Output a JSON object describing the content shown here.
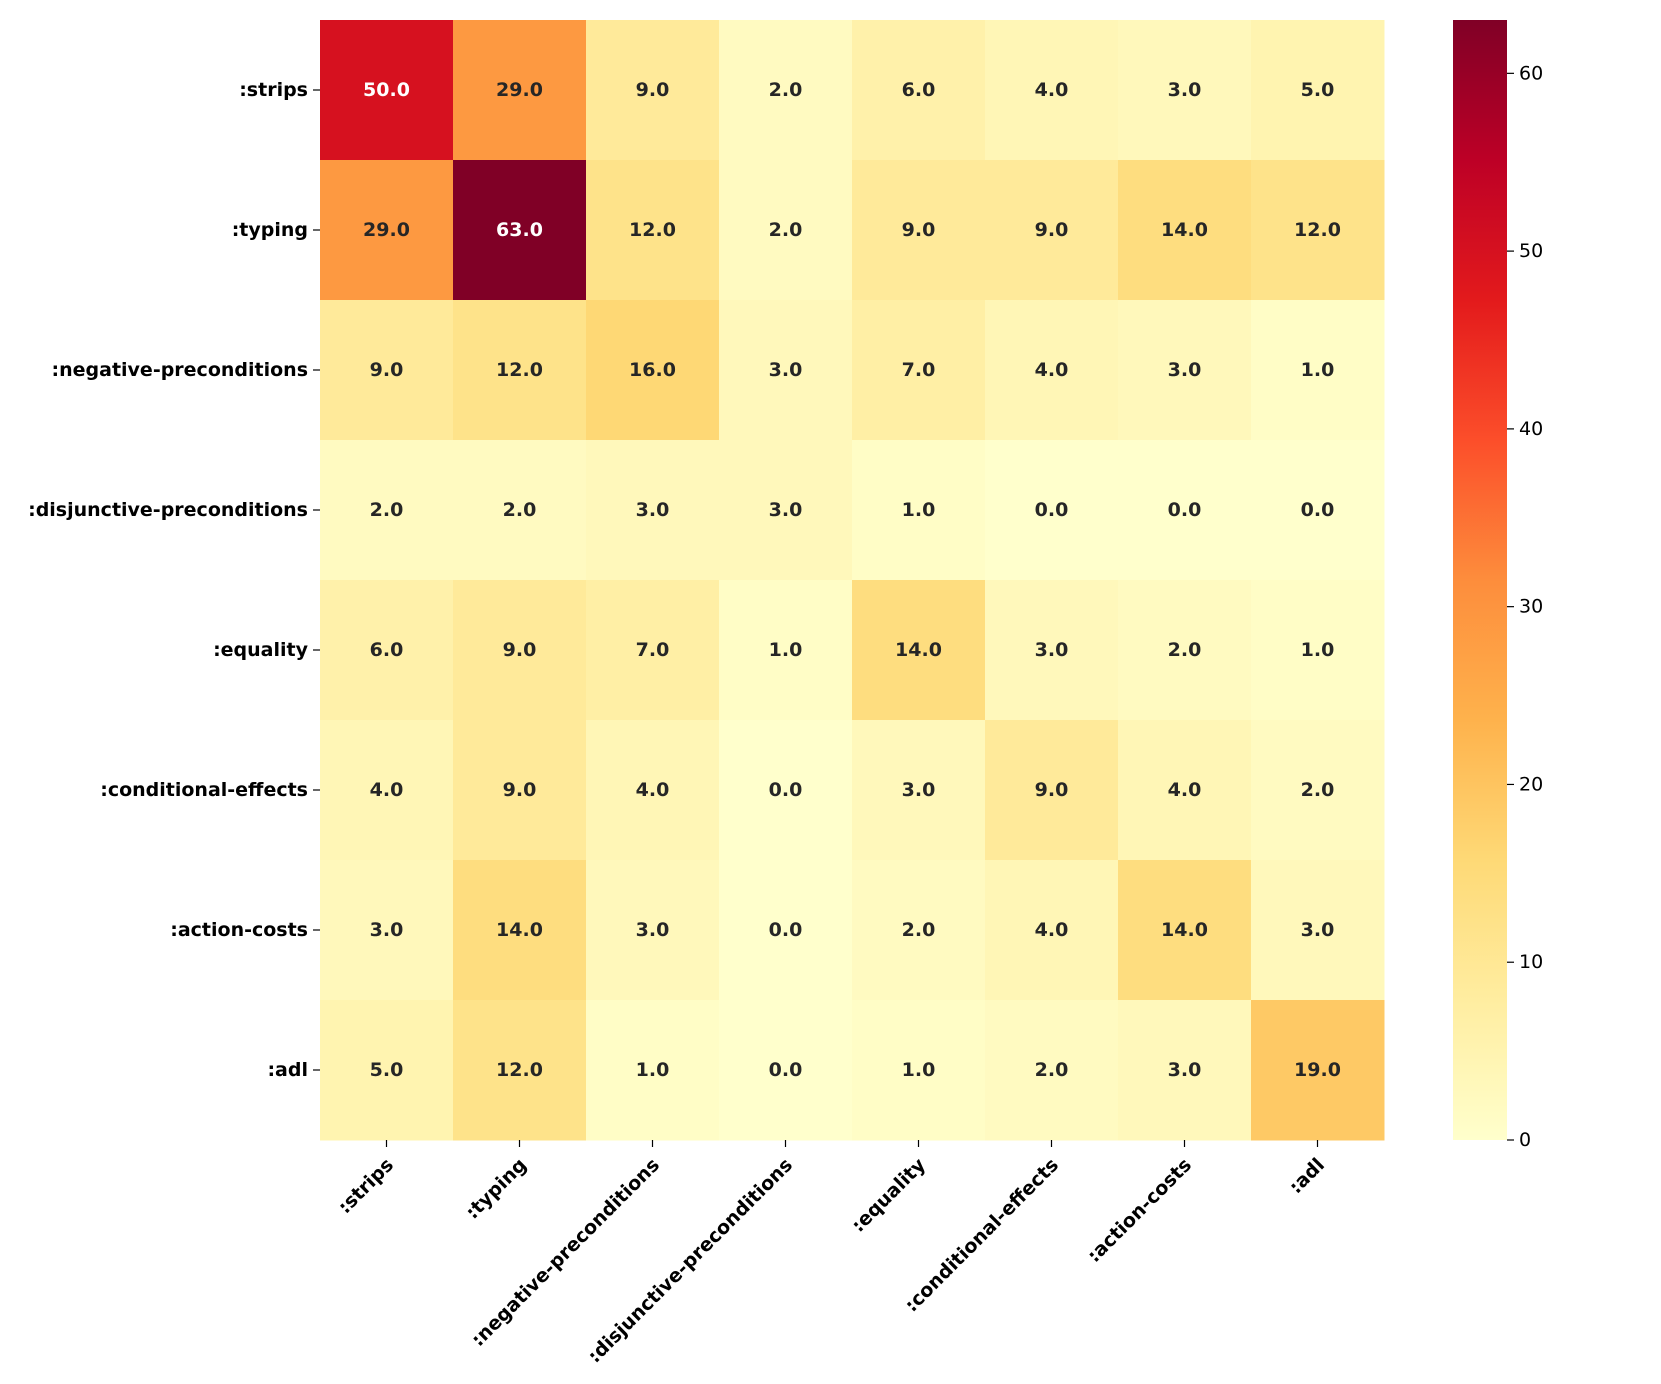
{
  "chart_data": {
    "type": "heatmap",
    "title": "",
    "xlabel": "",
    "ylabel": "",
    "rows": [
      ":strips",
      ":typing",
      ":negative-preconditions",
      ":disjunctive-preconditions",
      ":equality",
      ":conditional-effects",
      ":action-costs",
      ":adl"
    ],
    "columns": [
      ":strips",
      ":typing",
      ":negative-preconditions",
      ":disjunctive-preconditions",
      ":equality",
      ":conditional-effects",
      ":action-costs",
      ":adl"
    ],
    "values": [
      [
        50,
        29,
        9,
        2,
        6,
        4,
        3,
        5
      ],
      [
        29,
        63,
        12,
        2,
        9,
        9,
        14,
        12
      ],
      [
        9,
        12,
        16,
        3,
        7,
        4,
        3,
        1
      ],
      [
        2,
        2,
        3,
        3,
        1,
        0,
        0,
        0
      ],
      [
        6,
        9,
        7,
        1,
        14,
        3,
        2,
        1
      ],
      [
        4,
        9,
        4,
        0,
        3,
        9,
        4,
        2
      ],
      [
        3,
        14,
        3,
        0,
        2,
        4,
        14,
        3
      ],
      [
        5,
        12,
        1,
        0,
        1,
        2,
        3,
        19
      ]
    ],
    "value_format": "0.0",
    "colormap": "YlOrRd",
    "vmin": 0,
    "vmax": 63,
    "colorbar_ticks": [
      0,
      10,
      20,
      30,
      40,
      50,
      60
    ],
    "colorbar_position": "right",
    "grid": false
  }
}
